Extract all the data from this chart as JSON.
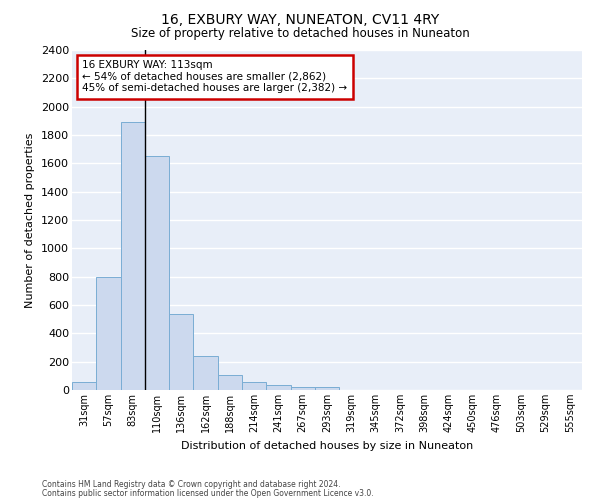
{
  "title": "16, EXBURY WAY, NUNEATON, CV11 4RY",
  "subtitle": "Size of property relative to detached houses in Nuneaton",
  "xlabel": "Distribution of detached houses by size in Nuneaton",
  "ylabel": "Number of detached properties",
  "bar_color": "#ccd9ee",
  "bar_edge_color": "#7aadd4",
  "background_color": "#e8eef8",
  "grid_color": "white",
  "categories": [
    "31sqm",
    "57sqm",
    "83sqm",
    "110sqm",
    "136sqm",
    "162sqm",
    "188sqm",
    "214sqm",
    "241sqm",
    "267sqm",
    "293sqm",
    "319sqm",
    "345sqm",
    "372sqm",
    "398sqm",
    "424sqm",
    "450sqm",
    "476sqm",
    "503sqm",
    "529sqm",
    "555sqm"
  ],
  "values": [
    55,
    800,
    1890,
    1650,
    535,
    240,
    108,
    55,
    35,
    20,
    18,
    0,
    0,
    0,
    0,
    0,
    0,
    0,
    0,
    0,
    0
  ],
  "ylim": [
    0,
    2400
  ],
  "yticks": [
    0,
    200,
    400,
    600,
    800,
    1000,
    1200,
    1400,
    1600,
    1800,
    2000,
    2200,
    2400
  ],
  "annotation_line": "16 EXBURY WAY: 113sqm",
  "annotation_line2": "← 54% of detached houses are smaller (2,862)",
  "annotation_line3": "45% of semi-detached houses are larger (2,382) →",
  "annotation_box_color": "white",
  "annotation_box_edge": "#cc0000",
  "footer_line1": "Contains HM Land Registry data © Crown copyright and database right 2024.",
  "footer_line2": "Contains public sector information licensed under the Open Government Licence v3.0."
}
